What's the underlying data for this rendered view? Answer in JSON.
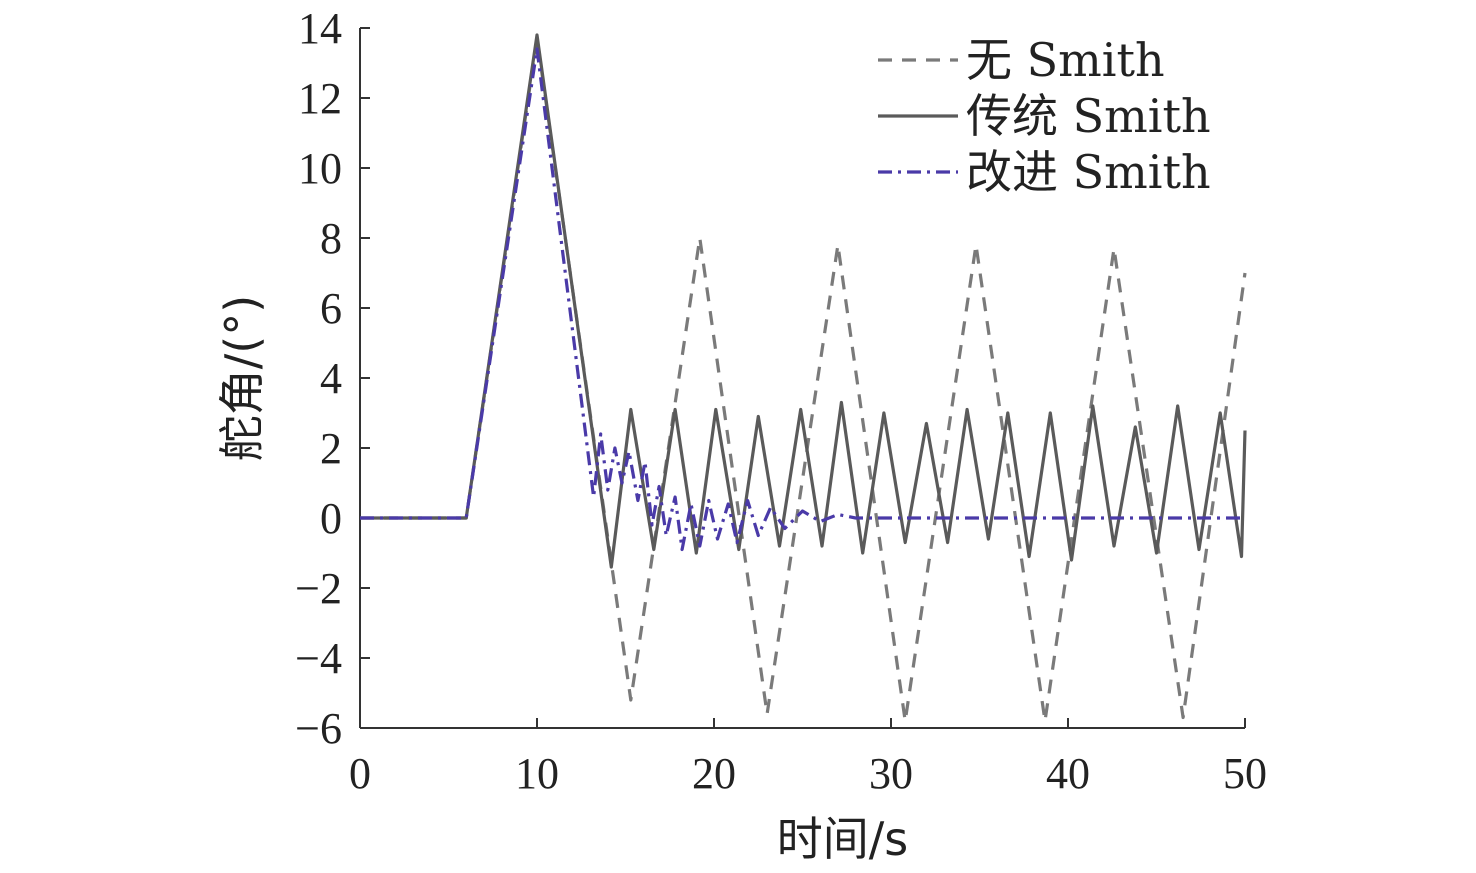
{
  "chart_data": {
    "type": "line",
    "title": "",
    "xlabel": "时间/s",
    "ylabel": "舵角/(°)",
    "xlim": [
      0,
      50
    ],
    "ylim": [
      -6,
      14
    ],
    "xticks": [
      0,
      10,
      20,
      30,
      40,
      50
    ],
    "yticks": [
      -6,
      -4,
      -2,
      0,
      2,
      4,
      6,
      8,
      10,
      12,
      14
    ],
    "ytick_labels": [
      "−6",
      "−4",
      "−2",
      "0",
      "2",
      "4",
      "6",
      "8",
      "10",
      "12",
      "14"
    ],
    "grid": false,
    "legend_position": "top-right",
    "series": [
      {
        "name": "无 Smith",
        "style": "dashed",
        "color": "#7a7a7a",
        "x": [
          0,
          6,
          10,
          15.3,
          19.2,
          23.0,
          27.0,
          30.8,
          34.8,
          38.7,
          42.6,
          46.5,
          50
        ],
        "y": [
          0,
          0,
          13.7,
          -5.2,
          8.0,
          -5.6,
          7.8,
          -5.8,
          7.8,
          -5.8,
          7.7,
          -5.7,
          7.0
        ]
      },
      {
        "name": "传统 Smith",
        "style": "solid",
        "color": "#5a5a5a",
        "x": [
          0,
          6,
          10,
          14.2,
          15.3,
          16.6,
          17.8,
          19.0,
          20.1,
          21.4,
          22.5,
          23.7,
          24.9,
          26.1,
          27.2,
          28.4,
          29.6,
          30.8,
          32.0,
          33.2,
          34.3,
          35.5,
          36.6,
          37.8,
          39.0,
          40.2,
          41.4,
          42.6,
          43.8,
          45.0,
          46.2,
          47.4,
          48.6,
          49.8,
          50
        ],
        "y": [
          0,
          0,
          13.8,
          -1.4,
          3.1,
          -0.9,
          3.1,
          -1.0,
          3.1,
          -0.9,
          2.9,
          -0.8,
          3.1,
          -0.8,
          3.3,
          -1.0,
          3.0,
          -0.7,
          2.7,
          -0.7,
          3.1,
          -0.6,
          3.0,
          -1.1,
          3.0,
          -1.2,
          3.2,
          -0.8,
          2.6,
          -1.0,
          3.2,
          -0.9,
          3.0,
          -1.1,
          2.5
        ]
      },
      {
        "name": "改进 Smith",
        "style": "dash-dot",
        "color": "#4a3aa8",
        "x": [
          0,
          6,
          10,
          13.2,
          13.6,
          14.0,
          14.4,
          14.8,
          15.2,
          15.7,
          16.1,
          16.5,
          16.9,
          17.3,
          17.8,
          18.2,
          18.7,
          19.2,
          19.7,
          20.2,
          20.8,
          21.3,
          21.9,
          22.5,
          23.2,
          24.0,
          25.0,
          26.0,
          27.0,
          28.0,
          30.0,
          35.0,
          40.0,
          45.0,
          50
        ],
        "y": [
          0,
          0,
          13.4,
          0.6,
          2.4,
          0.8,
          2.0,
          1.0,
          1.9,
          0.5,
          1.6,
          -0.2,
          0.9,
          -0.5,
          0.6,
          -0.9,
          0.4,
          -0.8,
          0.5,
          -0.6,
          0.4,
          -0.7,
          0.5,
          -0.5,
          0.3,
          -0.3,
          0.2,
          -0.1,
          0.1,
          0.0,
          0.0,
          0.0,
          0.0,
          0.0,
          0.0
        ]
      }
    ]
  }
}
